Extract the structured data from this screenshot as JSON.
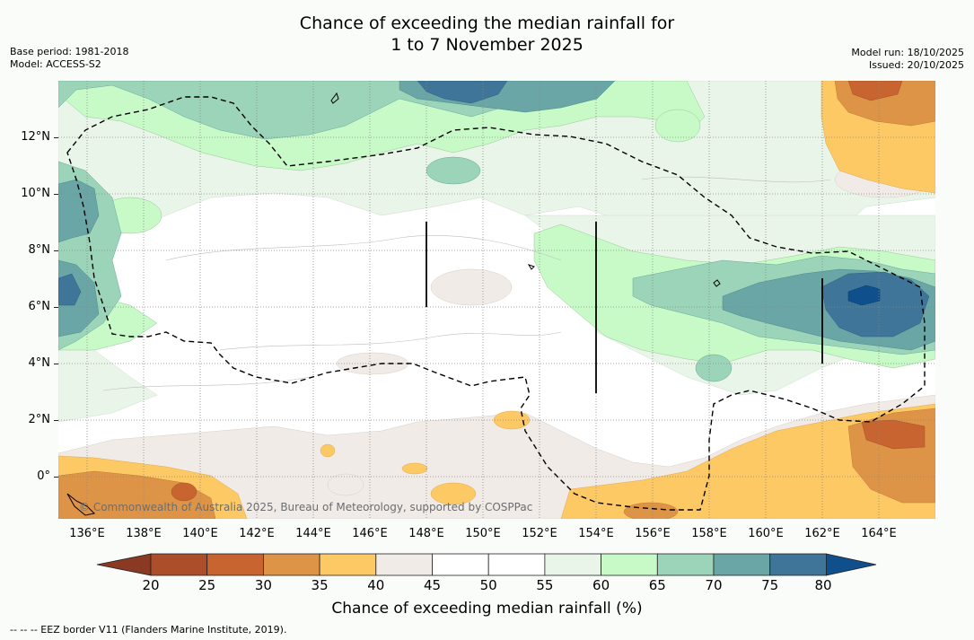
{
  "title": {
    "line1": "Chance of exceeding the median rainfall for",
    "line2": "1 to 7 November 2025"
  },
  "meta_left": {
    "base_period": "Base period: 1981-2018",
    "model": "Model: ACCESS-S2"
  },
  "meta_right": {
    "model_run": "Model run: 18/10/2025",
    "issued": "Issued: 20/10/2025"
  },
  "map": {
    "lat_labels": [
      "12°N",
      "10°N",
      "8°N",
      "6°N",
      "4°N",
      "2°N",
      "0°"
    ],
    "lon_labels": [
      "136°E",
      "138°E",
      "140°E",
      "142°E",
      "144°E",
      "146°E",
      "148°E",
      "150°E",
      "152°E",
      "154°E",
      "156°E",
      "158°E",
      "160°E",
      "162°E",
      "164°E"
    ],
    "copyright": "© Commonwealth of Australia 2025, Bureau of Meteorology, supported by COSPPac"
  },
  "colorbar": {
    "ticks": [
      "20",
      "25",
      "30",
      "35",
      "40",
      "45",
      "50",
      "55",
      "60",
      "65",
      "70",
      "75",
      "80"
    ],
    "colors": {
      "below20": "#8a3a22",
      "20-25": "#ad4e2a",
      "25-30": "#c8642f",
      "30-35": "#de9446",
      "35-40": "#fdc964",
      "40-45": "#f0ebe6",
      "45-50": "#ffffff",
      "50-55": "#ffffff",
      "55-60": "#eaf5ea",
      "60-65": "#c8fac8",
      "65-70": "#9bd4b8",
      "70-75": "#6aa6a6",
      "75-80": "#3f7598",
      "above80": "#0e4f8c"
    },
    "label": "Chance of exceeding median rainfall (%)"
  },
  "legend": {
    "eez": "--  --  -- EEZ border V11 (Flanders Marine Institute, 2019)."
  }
}
